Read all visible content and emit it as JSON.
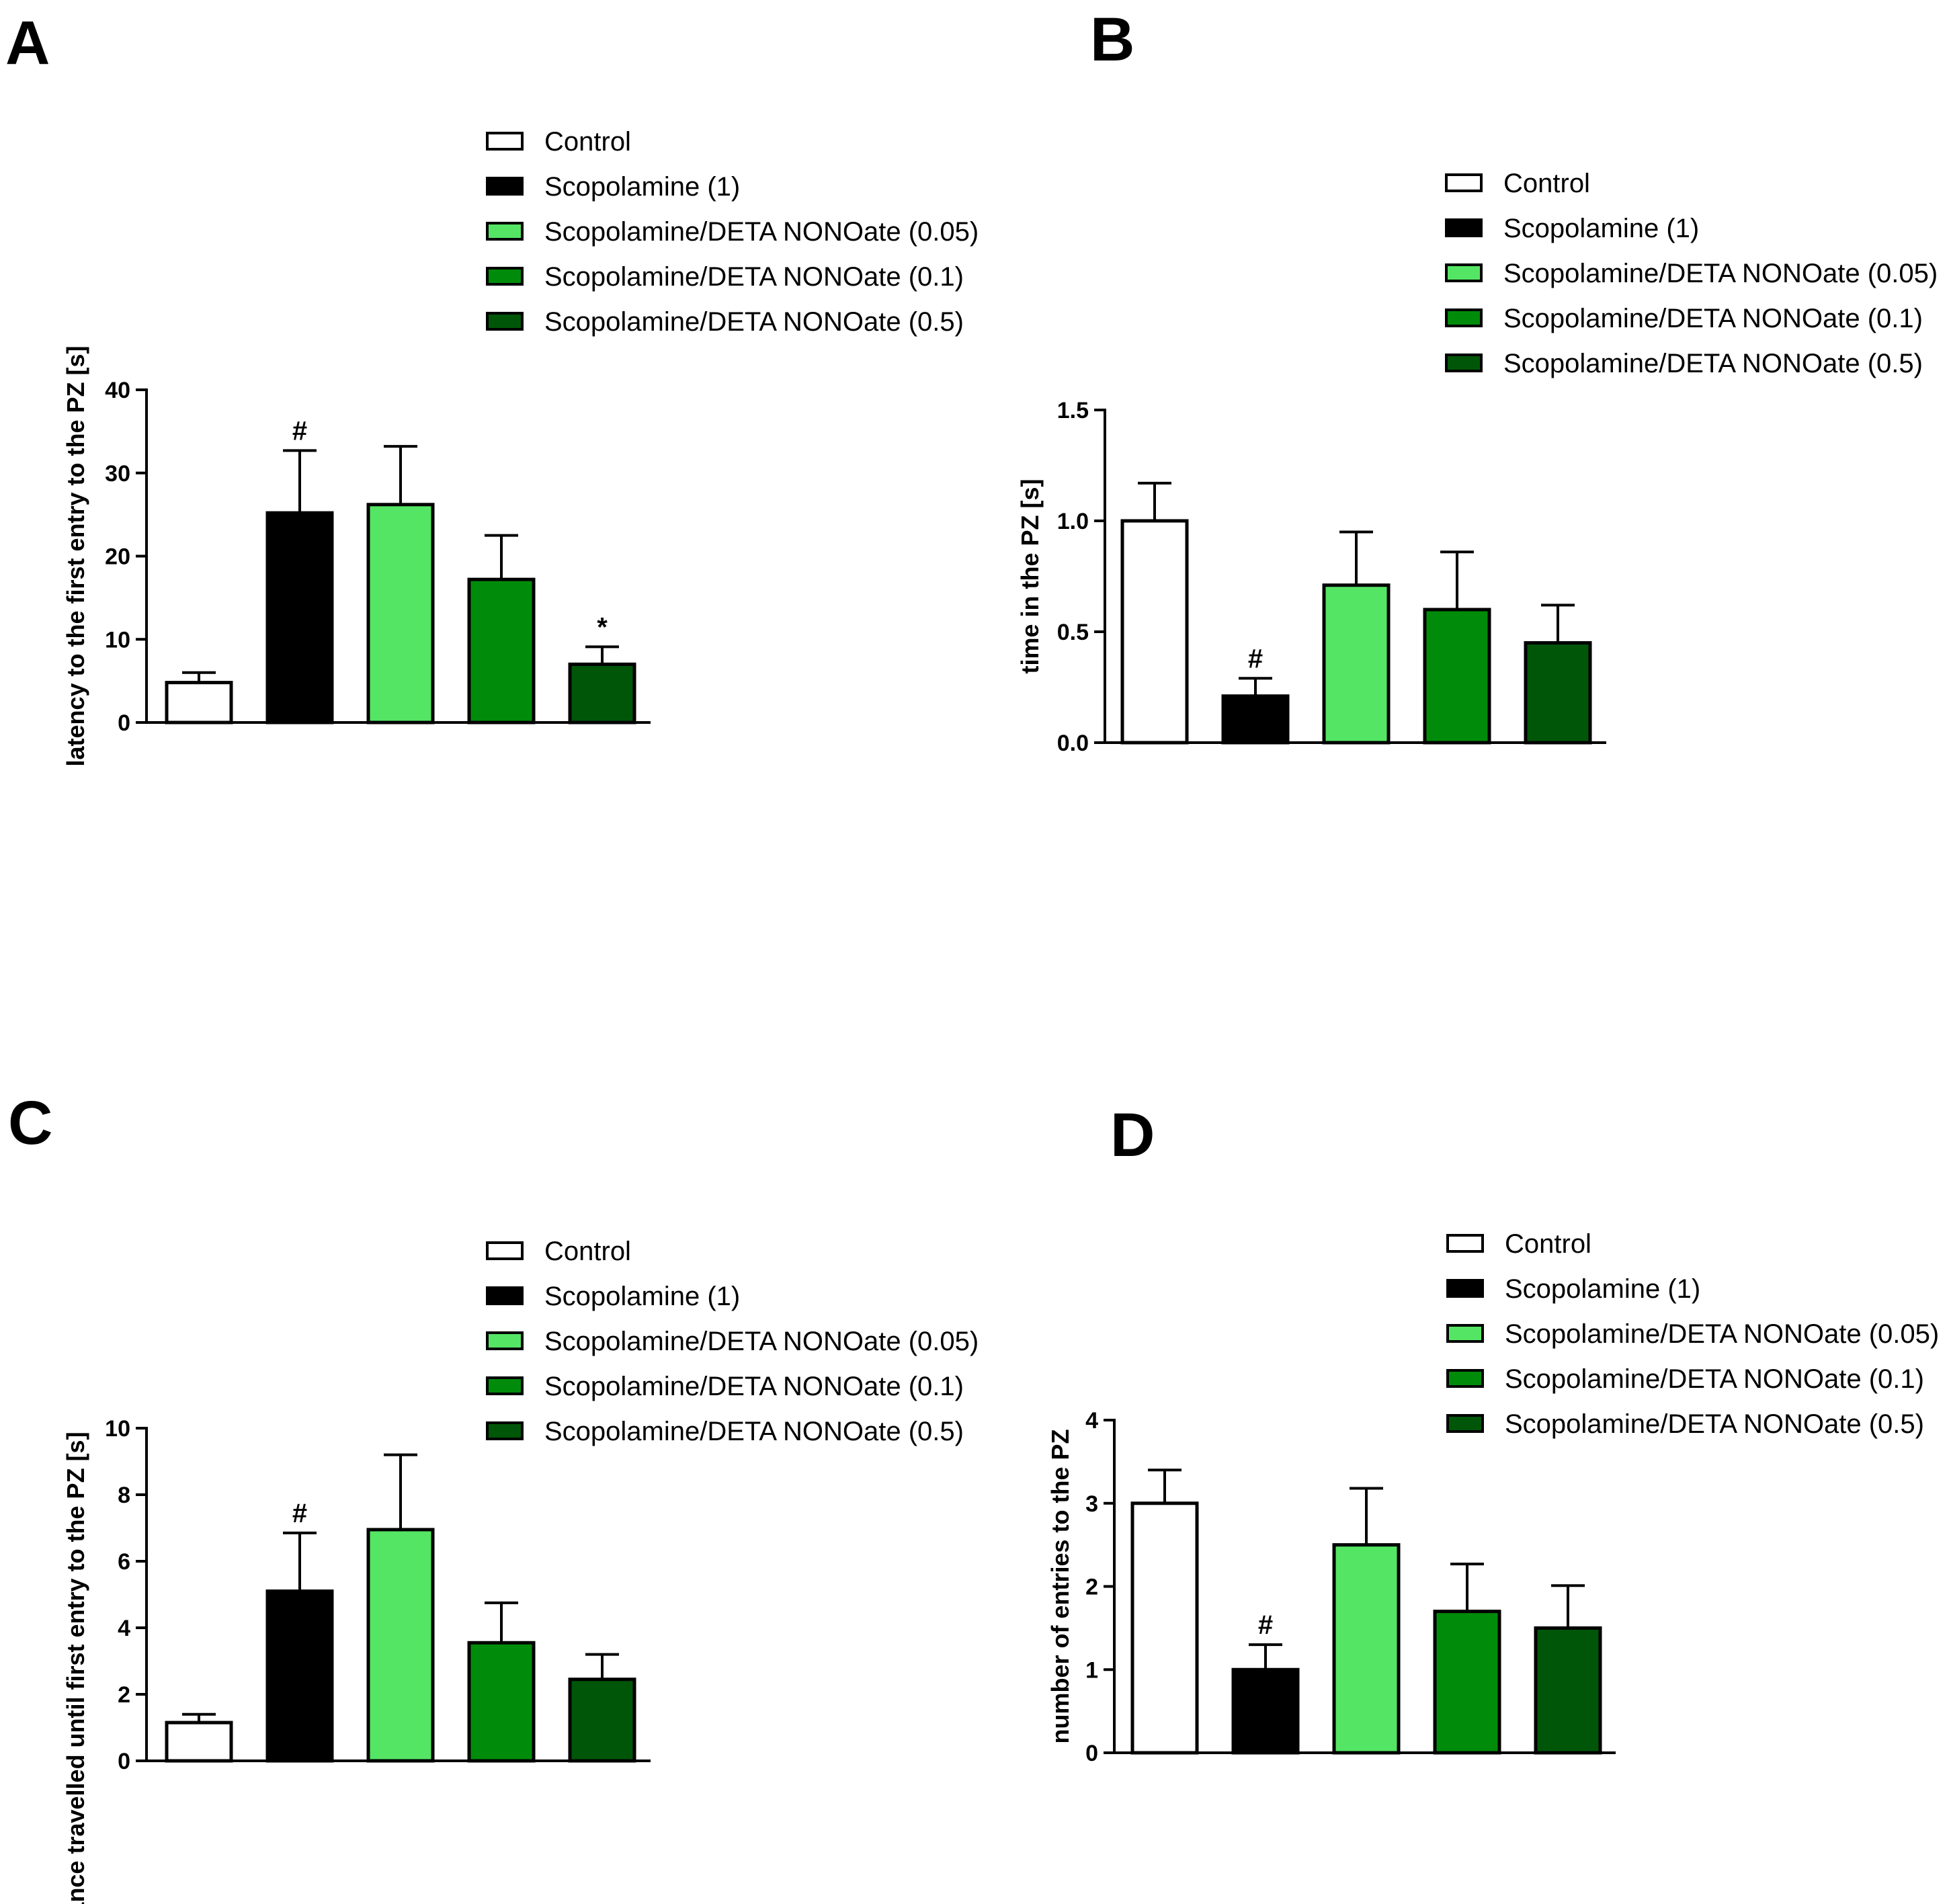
{
  "legend": [
    {
      "label": "Control",
      "color": "#ffffff"
    },
    {
      "label": "Scopolamine (1)",
      "color": "#000000"
    },
    {
      "label": "Scopolamine/DETA NONOate (0.05)",
      "color": "#55e565"
    },
    {
      "label": "Scopolamine/DETA NONOate (0.1)",
      "color": "#008c0a"
    },
    {
      "label": "Scopolamine/DETA NONOate (0.5)",
      "color": "#005608"
    }
  ],
  "chart_data": [
    {
      "panel": "A",
      "type": "bar",
      "title": "",
      "ylabel": "latency to the first entry to the PZ [s]",
      "ylim": [
        0,
        40
      ],
      "yticks": [
        "0",
        "10",
        "20",
        "30",
        "40"
      ],
      "categories": [
        "Control",
        "Scopolamine (1)",
        "Scopolamine/DETA NONOate (0.05)",
        "Scopolamine/DETA NONOate (0.1)",
        "Scopolamine/DETA NONOate (0.5)"
      ],
      "values": [
        4.8,
        25.2,
        26.2,
        17.2,
        7.0
      ],
      "errors": [
        1.2,
        7.5,
        7.0,
        5.3,
        2.1
      ],
      "annotations": [
        "",
        "#",
        "",
        "",
        "*"
      ]
    },
    {
      "panel": "B",
      "type": "bar",
      "title": "",
      "ylabel": "time in the PZ [s]",
      "ylim": [
        0,
        1.5
      ],
      "yticks": [
        "0.0",
        "0.5",
        "1.0",
        "1.5"
      ],
      "categories": [
        "Control",
        "Scopolamine (1)",
        "Scopolamine/DETA NONOate (0.05)",
        "Scopolamine/DETA NONOate (0.1)",
        "Scopolamine/DETA NONOate (0.5)"
      ],
      "values": [
        1.0,
        0.21,
        0.71,
        0.6,
        0.45
      ],
      "errors": [
        0.17,
        0.08,
        0.24,
        0.26,
        0.17
      ],
      "annotations": [
        "",
        "#",
        "",
        "",
        ""
      ]
    },
    {
      "panel": "C",
      "type": "bar",
      "title": "",
      "ylabel": "distance travelled until first entry to the PZ [s]",
      "ylim": [
        0,
        10
      ],
      "yticks": [
        "0",
        "2",
        "4",
        "6",
        "8",
        "10"
      ],
      "categories": [
        "Control",
        "Scopolamine (1)",
        "Scopolamine/DETA NONOate (0.05)",
        "Scopolamine/DETA NONOate (0.1)",
        "Scopolamine/DETA NONOate (0.5)"
      ],
      "values": [
        1.15,
        5.1,
        6.95,
        3.55,
        2.45
      ],
      "errors": [
        0.25,
        1.75,
        2.25,
        1.2,
        0.75
      ],
      "annotations": [
        "",
        "#",
        "",
        "",
        ""
      ]
    },
    {
      "panel": "D",
      "type": "bar",
      "title": "",
      "ylabel": "number of entries to the PZ",
      "ylim": [
        0,
        4
      ],
      "yticks": [
        "0",
        "1",
        "2",
        "3",
        "4"
      ],
      "categories": [
        "Control",
        "Scopolamine (1)",
        "Scopolamine/DETA NONOate (0.05)",
        "Scopolamine/DETA NONOate (0.1)",
        "Scopolamine/DETA NONOate (0.5)"
      ],
      "values": [
        3.0,
        1.0,
        2.5,
        1.7,
        1.5
      ],
      "errors": [
        0.4,
        0.3,
        0.68,
        0.57,
        0.51
      ],
      "annotations": [
        "",
        "#",
        "",
        "",
        ""
      ]
    }
  ]
}
